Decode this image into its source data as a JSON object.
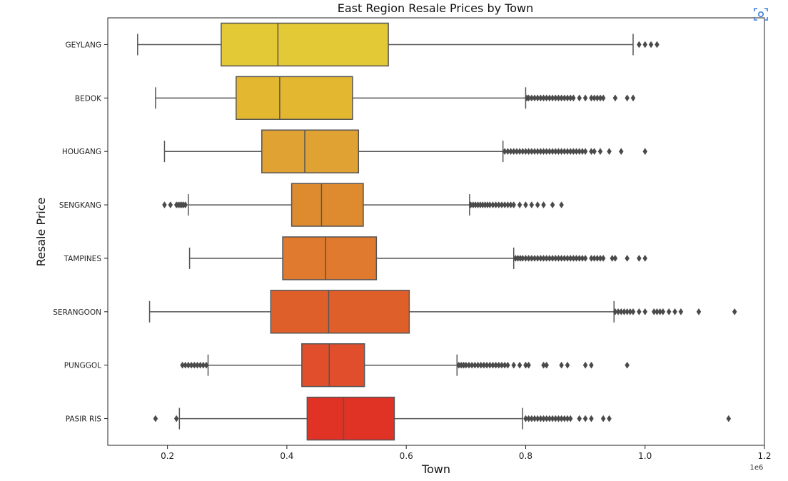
{
  "toolbar": {
    "screenshot_icon": "screenshot-capture-icon"
  },
  "chart_data": {
    "type": "box",
    "orientation": "horizontal",
    "title": "East Region Resale Prices by Town",
    "xlabel": "Town",
    "ylabel": "Resale Price",
    "x_offset_label": "1e6",
    "xlim": [
      0.1,
      1.2
    ],
    "xticks": [
      0.2,
      0.4,
      0.6,
      0.8,
      1.0,
      1.2
    ],
    "xtick_labels": [
      "0.2",
      "0.4",
      "0.6",
      "0.8",
      "1.0",
      "1.2"
    ],
    "grid": false,
    "categories": [
      "GEYLANG",
      "BEDOK",
      "HOUGANG",
      "SENGKANG",
      "TAMPINES",
      "SERANGOON",
      "PUNGGOL",
      "PASIR RIS"
    ],
    "colors": [
      "#e3c935",
      "#e3b730",
      "#e0a232",
      "#de8b30",
      "#e07a2f",
      "#df5f2a",
      "#e04e2b",
      "#e03326"
    ],
    "edge_color": "#555555",
    "boxes": [
      {
        "whislo": 0.15,
        "q1": 0.29,
        "med": 0.385,
        "q3": 0.57,
        "whishi": 0.98,
        "fliers": [
          0.99,
          1.0,
          1.01,
          1.02
        ]
      },
      {
        "whislo": 0.18,
        "q1": 0.315,
        "med": 0.388,
        "q3": 0.51,
        "whishi": 0.8,
        "fliers": [
          0.802,
          0.805,
          0.81,
          0.815,
          0.82,
          0.825,
          0.83,
          0.835,
          0.84,
          0.845,
          0.85,
          0.855,
          0.86,
          0.865,
          0.87,
          0.875,
          0.88,
          0.89,
          0.9,
          0.91,
          0.915,
          0.92,
          0.925,
          0.93,
          0.95,
          0.97,
          0.98
        ]
      },
      {
        "whislo": 0.195,
        "q1": 0.358,
        "med": 0.43,
        "q3": 0.52,
        "whishi": 0.762,
        "fliers": [
          0.765,
          0.77,
          0.775,
          0.78,
          0.785,
          0.79,
          0.795,
          0.8,
          0.805,
          0.81,
          0.815,
          0.82,
          0.825,
          0.83,
          0.835,
          0.84,
          0.845,
          0.85,
          0.855,
          0.86,
          0.865,
          0.87,
          0.875,
          0.88,
          0.885,
          0.89,
          0.895,
          0.9,
          0.91,
          0.915,
          0.925,
          0.94,
          0.96,
          1.0
        ]
      },
      {
        "whislo": 0.235,
        "q1": 0.408,
        "med": 0.458,
        "q3": 0.528,
        "whishi": 0.706,
        "fliers": [
          0.195,
          0.205,
          0.215,
          0.218,
          0.221,
          0.224,
          0.227,
          0.23,
          0.708,
          0.712,
          0.716,
          0.72,
          0.724,
          0.728,
          0.732,
          0.736,
          0.74,
          0.745,
          0.75,
          0.755,
          0.76,
          0.765,
          0.77,
          0.775,
          0.78,
          0.79,
          0.8,
          0.81,
          0.82,
          0.83,
          0.845,
          0.86
        ]
      },
      {
        "whislo": 0.237,
        "q1": 0.393,
        "med": 0.465,
        "q3": 0.55,
        "whishi": 0.78,
        "fliers": [
          0.783,
          0.787,
          0.791,
          0.795,
          0.8,
          0.805,
          0.81,
          0.815,
          0.82,
          0.825,
          0.83,
          0.835,
          0.84,
          0.845,
          0.85,
          0.855,
          0.86,
          0.865,
          0.87,
          0.875,
          0.88,
          0.885,
          0.89,
          0.895,
          0.9,
          0.91,
          0.915,
          0.92,
          0.925,
          0.93,
          0.945,
          0.95,
          0.97,
          0.99,
          1.0
        ]
      },
      {
        "whislo": 0.17,
        "q1": 0.373,
        "med": 0.47,
        "q3": 0.605,
        "whishi": 0.948,
        "fliers": [
          0.95,
          0.955,
          0.96,
          0.965,
          0.97,
          0.975,
          0.98,
          0.99,
          1.0,
          1.015,
          1.02,
          1.025,
          1.03,
          1.04,
          1.05,
          1.06,
          1.09,
          1.15
        ]
      },
      {
        "whislo": 0.268,
        "q1": 0.425,
        "med": 0.471,
        "q3": 0.53,
        "whishi": 0.685,
        "fliers": [
          0.225,
          0.23,
          0.235,
          0.24,
          0.245,
          0.25,
          0.255,
          0.26,
          0.265,
          0.688,
          0.692,
          0.696,
          0.7,
          0.705,
          0.71,
          0.715,
          0.72,
          0.725,
          0.73,
          0.735,
          0.74,
          0.745,
          0.75,
          0.755,
          0.76,
          0.765,
          0.77,
          0.78,
          0.79,
          0.8,
          0.805,
          0.83,
          0.835,
          0.86,
          0.87,
          0.9,
          0.91,
          0.97
        ]
      },
      {
        "whislo": 0.22,
        "q1": 0.434,
        "med": 0.495,
        "q3": 0.58,
        "whishi": 0.795,
        "fliers": [
          0.18,
          0.215,
          0.8,
          0.805,
          0.81,
          0.815,
          0.82,
          0.825,
          0.83,
          0.835,
          0.84,
          0.845,
          0.85,
          0.855,
          0.86,
          0.865,
          0.87,
          0.875,
          0.89,
          0.9,
          0.91,
          0.93,
          0.94,
          1.14
        ]
      }
    ]
  }
}
